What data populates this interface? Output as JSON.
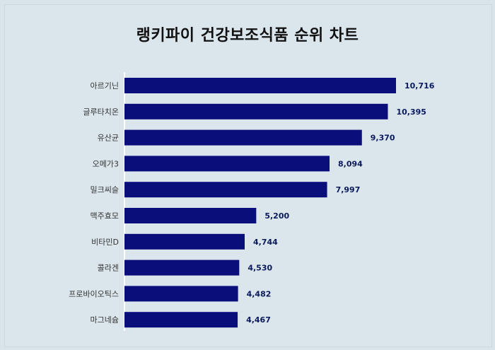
{
  "chart_data": {
    "type": "bar",
    "orientation": "horizontal",
    "title": "랭키파이 건강보조식품 순위 차트",
    "categories": [
      "아르기닌",
      "글루타치온",
      "유산균",
      "오메가3",
      "밀크씨슬",
      "맥주효모",
      "비타민D",
      "콜라겐",
      "프로바이오틱스",
      "마그네슘"
    ],
    "values": [
      10716,
      10395,
      9370,
      8094,
      7997,
      5200,
      4744,
      4530,
      4482,
      4467
    ],
    "value_labels": [
      "10,716",
      "10,395",
      "9,370",
      "8,094",
      "7,997",
      "5,200",
      "4,744",
      "4,530",
      "4,482",
      "4,467"
    ],
    "xlabel": "",
    "ylabel": "",
    "grid": false,
    "bar_color": "#0a0e7a"
  }
}
